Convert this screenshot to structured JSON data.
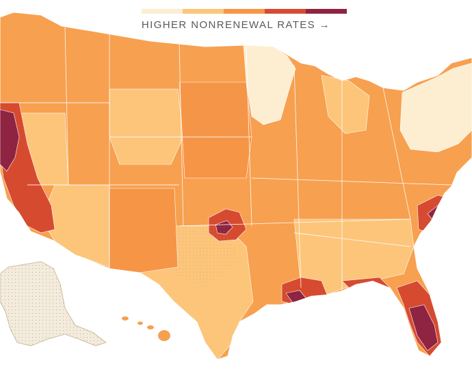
{
  "legend": {
    "label": "HIGHER NONRENEWAL RATES →",
    "scale": [
      {
        "color": "#fdeed2"
      },
      {
        "color": "#fcc57a"
      },
      {
        "color": "#f79546"
      },
      {
        "color": "#d64b30"
      },
      {
        "color": "#8e2342"
      }
    ]
  },
  "map": {
    "base_color": "#f7a04f",
    "no_data_color": "#f3ebdc",
    "border_color": "#ffffff",
    "regions": [
      {
        "name": "west-coast-high",
        "level": 4
      },
      {
        "name": "northern-california-highest",
        "level": 5
      },
      {
        "name": "southern-california-high",
        "level": 4
      },
      {
        "name": "arizona-low",
        "level": 2
      },
      {
        "name": "new-mexico-mid",
        "level": 3
      },
      {
        "name": "texas-mixed",
        "level": 2
      },
      {
        "name": "oklahoma-high",
        "level": 4
      },
      {
        "name": "gulf-coast-high",
        "level": 4
      },
      {
        "name": "florida-highest",
        "level": 5
      },
      {
        "name": "carolinas-coast-high",
        "level": 4
      },
      {
        "name": "upper-midwest-lowest",
        "level": 1
      },
      {
        "name": "northeast-lowest",
        "level": 1
      },
      {
        "name": "plains-mid",
        "level": 3
      },
      {
        "name": "alaska-no-data",
        "level": 0
      }
    ]
  }
}
